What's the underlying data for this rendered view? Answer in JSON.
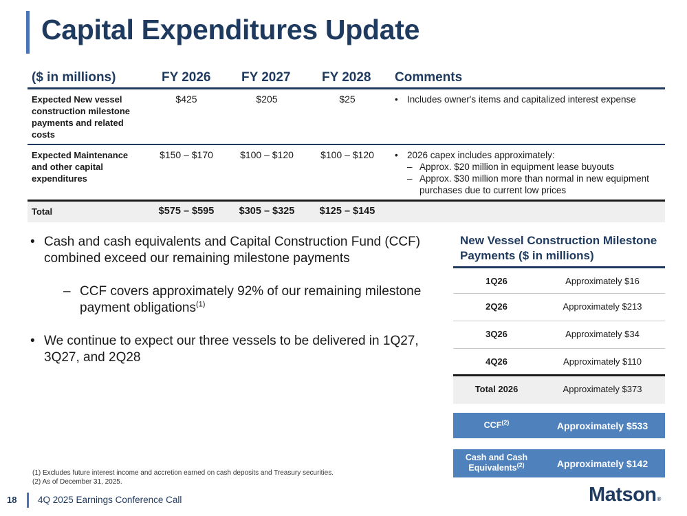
{
  "title": "Capital Expenditures Update",
  "table": {
    "headers": [
      "($ in millions)",
      "FY 2026",
      "FY 2027",
      "FY 2028",
      "Comments"
    ],
    "rows": [
      {
        "label": "Expected New vessel construction milestone payments and related costs",
        "values": [
          "$425",
          "$205",
          "$25"
        ],
        "comment": "Includes owner's items and capitalized interest expense",
        "sub_comments": []
      },
      {
        "label": "Expected Maintenance and other capital expenditures",
        "values": [
          "$150 – $170",
          "$100 – $120",
          "$100 – $120"
        ],
        "comment": "2026 capex includes approximately:",
        "sub_comments": [
          "Approx. $20 million in equipment lease buyouts",
          "Approx. $30 million more than normal in new equipment purchases due to current low prices"
        ]
      }
    ],
    "total": {
      "label": "Total",
      "values": [
        "$575 – $595",
        "$305 – $325",
        "$125 – $145"
      ]
    }
  },
  "bullets": {
    "b1": "Cash and cash equivalents and Capital Construction Fund (CCF) combined exceed our remaining milestone payments",
    "b1_sub": "CCF covers approximately 92% of our remaining milestone payment obligations",
    "b1_sub_ref": "(1)",
    "b2": "We continue to expect our three vessels to be delivered in 1Q27, 3Q27, and 2Q28"
  },
  "milestones": {
    "title": "New Vessel Construction Milestone Payments ($ in millions)",
    "rows": [
      {
        "quarter": "1Q26",
        "value": "Approximately $16"
      },
      {
        "quarter": "2Q26",
        "value": "Approximately $213"
      },
      {
        "quarter": "3Q26",
        "value": "Approximately $34"
      },
      {
        "quarter": "4Q26",
        "value": "Approximately $110"
      }
    ],
    "total": {
      "quarter": "Total 2026",
      "value": "Approximately $373"
    }
  },
  "funding": {
    "ccf_label": "CCF",
    "ccf_ref": "(2)",
    "ccf_value": "Approximately $533",
    "cash_label": "Cash and Cash Equivalents",
    "cash_ref": "(2)",
    "cash_value": "Approximately $142"
  },
  "footnotes": [
    "(1)  Excludes future interest income and accretion earned on cash deposits and Treasury securities.",
    "(2)  As of December 31, 2025."
  ],
  "footer": {
    "page": "18",
    "title": "4Q 2025 Earnings Conference Call",
    "logo": "Matson"
  },
  "colors": {
    "navy": "#1f3a5f",
    "accent": "#4a74b5",
    "box": "#4f81bd",
    "total_bg": "#efefef"
  }
}
